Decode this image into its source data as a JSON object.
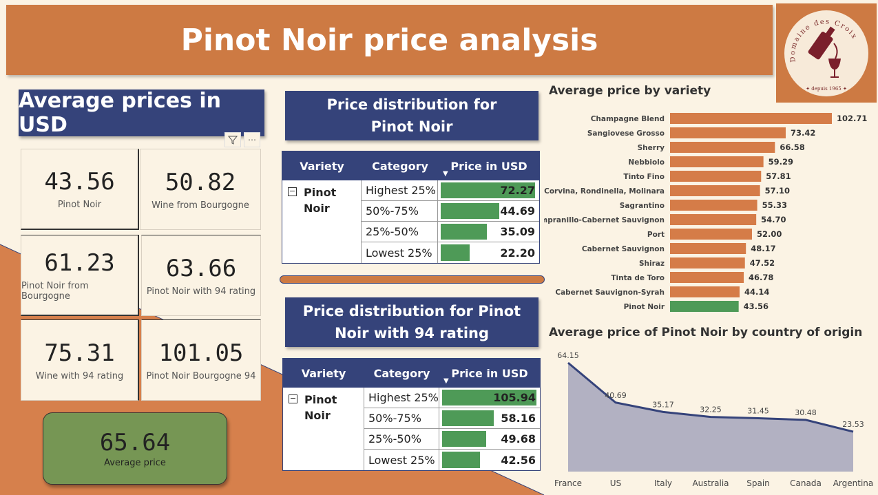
{
  "title": "Pinot Noir price analysis",
  "logo": {
    "text": "Domaine des Croix",
    "subtext": "✦ depuis 1965 ✦"
  },
  "averages": {
    "heading": "Average prices in USD",
    "cards": [
      {
        "value": "43.56",
        "label": "Pinot Noir"
      },
      {
        "value": "50.82",
        "label": "Wine from Bourgogne"
      },
      {
        "value": "61.23",
        "label": "Pinot Noir from Bourgogne"
      },
      {
        "value": "63.66",
        "label": "Pinot Noir with 94 rating"
      },
      {
        "value": "75.31",
        "label": "Wine with 94 rating"
      },
      {
        "value": "101.05",
        "label": "Pinot Noir Bourgogne 94"
      }
    ],
    "overall": {
      "value": "65.64",
      "label": "Average price"
    }
  },
  "icons": {
    "filter": "filter-icon",
    "more": "more-options-icon",
    "collapse": "collapse-minus-icon"
  },
  "colors": {
    "banner": "#cd7a43",
    "navy": "#35437a",
    "green": "#4e9a57",
    "orange_bar": "#d57c48",
    "area": "#b2b1c2"
  },
  "dist1": {
    "heading": "Price distribution for Pinot Noir",
    "headers": [
      "Variety",
      "Category",
      "Price in USD"
    ],
    "variety": "Pinot Noir",
    "rows": [
      {
        "category": "Highest 25%",
        "price": "72.27",
        "value": 72.27
      },
      {
        "category": "50%-75%",
        "price": "44.69",
        "value": 44.69
      },
      {
        "category": "25%-50%",
        "price": "35.09",
        "value": 35.09
      },
      {
        "category": "Lowest 25%",
        "price": "22.20",
        "value": 22.2
      }
    ]
  },
  "dist2": {
    "heading": "Price distribution for Pinot Noir with 94 rating",
    "headers": [
      "Variety",
      "Category",
      "Price in USD"
    ],
    "variety": "Pinot Noir",
    "rows": [
      {
        "category": "Highest 25%",
        "price": "105.94",
        "value": 105.94
      },
      {
        "category": "50%-75%",
        "price": "58.16",
        "value": 58.16
      },
      {
        "category": "25%-50%",
        "price": "49.68",
        "value": 49.68
      },
      {
        "category": "Lowest 25%",
        "price": "42.56",
        "value": 42.56
      }
    ]
  },
  "chart_data": [
    {
      "type": "bar",
      "orientation": "horizontal",
      "title": "Average price by variety",
      "categories": [
        "Champagne Blend",
        "Sangiovese Grosso",
        "Sherry",
        "Nebbiolo",
        "Tinto Fino",
        "Corvina, Rondinella, Molinara",
        "Sagrantino",
        "Tempranillo-Cabernet Sauvignon",
        "Port",
        "Cabernet Sauvignon",
        "Shiraz",
        "Tinta de Toro",
        "Cabernet Sauvignon-Syrah",
        "Pinot Noir"
      ],
      "values": [
        102.71,
        73.42,
        66.58,
        59.29,
        57.81,
        57.1,
        55.33,
        54.7,
        52.0,
        48.17,
        47.52,
        46.78,
        44.14,
        43.56
      ],
      "labels": [
        "102.71",
        "73.42",
        "66.58",
        "59.29",
        "57.81",
        "57.10",
        "55.33",
        "54.70",
        "52.00",
        "48.17",
        "47.52",
        "46.78",
        "44.14",
        "43.56"
      ],
      "highlight": "Pinot Noir"
    },
    {
      "type": "area",
      "title": "Average price of Pinot Noir by country of origin",
      "categories": [
        "France",
        "US",
        "Italy",
        "Australia",
        "Spain",
        "Canada",
        "Argentina"
      ],
      "values": [
        64.15,
        40.69,
        35.17,
        32.25,
        31.45,
        30.48,
        23.53
      ],
      "labels": [
        "64.15",
        "40.69",
        "35.17",
        "32.25",
        "31.45",
        "30.48",
        "23.53"
      ]
    }
  ]
}
